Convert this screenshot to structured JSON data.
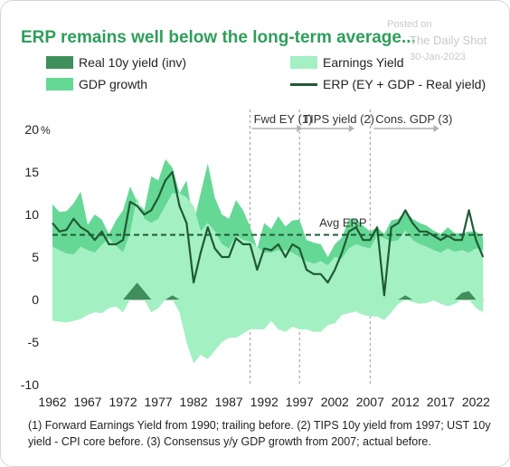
{
  "title": "ERP remains well below the long-term average...",
  "watermark": {
    "line1": "Posted on",
    "line2": "The Daily Shot",
    "line3": "30-Jan-2023"
  },
  "colors": {
    "real_yield": "#3f8f5c",
    "earnings_yield": "#a3f0c3",
    "gdp_growth": "#66d895",
    "erp_line": "#1f5a34",
    "title": "#2f9e5b",
    "annotation": "#333333"
  },
  "legend": {
    "real_yield": "Real 10y yield (inv)",
    "earnings_yield": "Earnings Yield",
    "gdp_growth": "GDP growth",
    "erp": "ERP (EY + GDP - Real yield)"
  },
  "annotations": {
    "fwd_ey": "Fwd EY (1)",
    "tips": "TIPS yield (2)",
    "cons_gdp": "Cons. GDP (3)",
    "avg_erp": "Avg ERP"
  },
  "footnote": "(1) Forward Earnings Yield from 1990; trailing before. (2) TIPS 10y yield from 1997; UST 10y yield - CPI core before. (3) Consensus y/y GDP growth from 2007; actual before.",
  "chart_data": {
    "type": "area",
    "xlim": [
      1962,
      2023.1
    ],
    "ylim": [
      -10,
      20
    ],
    "x_ticks": [
      1962,
      1967,
      1972,
      1977,
      1982,
      1987,
      1992,
      1997,
      2002,
      2007,
      2012,
      2017,
      2022
    ],
    "y_ticks": [
      -10,
      -5,
      0,
      5,
      10,
      15,
      20
    ],
    "y_unit": "%",
    "avg_erp": 7.6,
    "vlines": [
      1990,
      1997,
      2007
    ],
    "x": [
      1962,
      1963,
      1964,
      1965,
      1966,
      1967,
      1968,
      1969,
      1970,
      1971,
      1972,
      1973,
      1974,
      1975,
      1976,
      1977,
      1978,
      1979,
      1980,
      1981,
      1982,
      1983,
      1984,
      1985,
      1986,
      1987,
      1988,
      1989,
      1990,
      1991,
      1992,
      1993,
      1994,
      1995,
      1996,
      1997,
      1998,
      1999,
      2000,
      2001,
      2002,
      2003,
      2004,
      2005,
      2006,
      2007,
      2008,
      2009,
      2010,
      2011,
      2012,
      2013,
      2014,
      2015,
      2016,
      2017,
      2018,
      2019,
      2020,
      2021,
      2022,
      2023
    ],
    "series": [
      {
        "name": "Real 10y yield (inv)",
        "values": [
          -2.5,
          -2.6,
          -2.7,
          -2.5,
          -2.3,
          -1.8,
          -1.5,
          -1.6,
          -1.0,
          -0.8,
          -1.5,
          1.0,
          2.0,
          1.0,
          -1.5,
          -1.0,
          0.0,
          0.5,
          -1.5,
          -5.0,
          -7.5,
          -6.5,
          -7.0,
          -6.0,
          -5.0,
          -4.5,
          -4.5,
          -4.0,
          -3.5,
          -3.5,
          -3.5,
          -2.5,
          -3.5,
          -3.8,
          -3.2,
          -3.5,
          -3.5,
          -3.8,
          -3.8,
          -3.0,
          -2.8,
          -1.8,
          -1.6,
          -1.4,
          -1.8,
          -2.0,
          -2.0,
          -2.4,
          -1.5,
          -0.5,
          0.5,
          -0.3,
          -0.5,
          -0.4,
          -0.1,
          -0.5,
          -0.8,
          -0.5,
          0.8,
          1.0,
          -1.0,
          -1.5
        ]
      },
      {
        "name": "Earnings Yield",
        "values": [
          6.2,
          5.8,
          5.4,
          5.3,
          6.2,
          5.8,
          5.5,
          6.4,
          7.2,
          6.3,
          5.5,
          6.8,
          10.0,
          8.5,
          9.0,
          9.5,
          11.0,
          12.0,
          12.5,
          12.0,
          11.0,
          8.0,
          9.0,
          8.0,
          6.5,
          6.0,
          7.5,
          7.0,
          6.8,
          6.2,
          5.5,
          5.5,
          5.8,
          5.8,
          5.5,
          5.0,
          4.5,
          4.2,
          4.5,
          4.0,
          5.0,
          4.8,
          6.0,
          6.5,
          6.2,
          6.0,
          7.5,
          7.2,
          6.8,
          7.0,
          7.6,
          7.0,
          6.5,
          6.2,
          5.8,
          5.5,
          6.0,
          5.6,
          5.0,
          4.5,
          6.0,
          5.8
        ]
      },
      {
        "name": "GDP growth",
        "values": [
          5.0,
          4.5,
          5.0,
          6.0,
          6.5,
          3.0,
          4.5,
          3.0,
          0.5,
          3.0,
          5.0,
          5.5,
          -0.5,
          1.0,
          5.5,
          4.5,
          5.5,
          3.0,
          0.0,
          2.0,
          -2.0,
          4.5,
          7.0,
          4.0,
          3.5,
          3.5,
          4.2,
          3.5,
          1.8,
          -0.2,
          3.5,
          2.8,
          4.0,
          2.8,
          3.8,
          4.4,
          2.5,
          2.5,
          2.0,
          1.0,
          1.5,
          2.5,
          3.5,
          3.0,
          2.5,
          2.0,
          1.0,
          0.5,
          2.5,
          2.5,
          2.3,
          2.5,
          2.5,
          2.5,
          2.3,
          2.2,
          2.5,
          2.2,
          2.0,
          2.5,
          2.0,
          1.5
        ]
      },
      {
        "name": "ERP (EY + GDP - Real yield)",
        "values": [
          9.0,
          8.0,
          8.2,
          9.5,
          8.5,
          8.0,
          7.0,
          8.0,
          6.5,
          6.5,
          7.0,
          11.5,
          11.0,
          10.0,
          10.5,
          12.0,
          14.0,
          15.0,
          11.0,
          9.0,
          2.0,
          5.5,
          8.5,
          6.0,
          5.0,
          5.0,
          7.2,
          6.5,
          6.5,
          3.5,
          6.0,
          5.8,
          6.5,
          5.0,
          6.5,
          6.0,
          3.5,
          3.0,
          3.0,
          2.0,
          3.5,
          5.5,
          8.0,
          8.5,
          7.0,
          7.0,
          8.5,
          0.5,
          8.5,
          9.0,
          10.5,
          9.0,
          8.0,
          8.0,
          7.5,
          7.0,
          7.5,
          7.0,
          7.0,
          10.5,
          7.0,
          5.0
        ]
      }
    ]
  }
}
